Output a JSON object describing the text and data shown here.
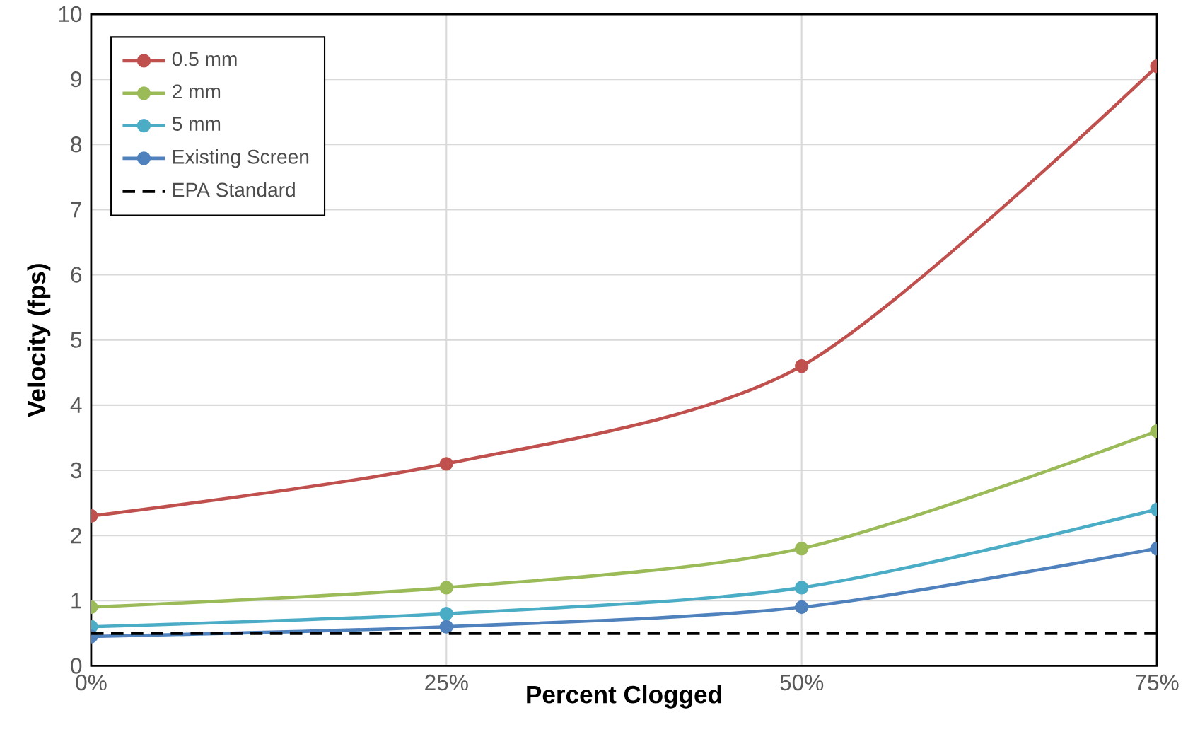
{
  "chart_data": {
    "type": "line",
    "xlabel": "Percent Clogged",
    "ylabel": "Velocity (fps)",
    "x": [
      0,
      25,
      50,
      75
    ],
    "series": [
      {
        "name": "0.5 mm",
        "color": "#c0504d",
        "values": [
          2.3,
          3.1,
          4.6,
          9.2
        ],
        "marker": "circle",
        "line_style": "solid"
      },
      {
        "name": "2 mm",
        "color": "#9bbb59",
        "values": [
          0.9,
          1.2,
          1.8,
          3.6
        ],
        "marker": "circle",
        "line_style": "solid"
      },
      {
        "name": "5 mm",
        "color": "#4bacc6",
        "values": [
          0.6,
          0.8,
          1.2,
          2.4
        ],
        "marker": "circle",
        "line_style": "solid"
      },
      {
        "name": "Existing Screen",
        "color": "#4f81bd",
        "values": [
          0.45,
          0.6,
          0.9,
          1.8
        ],
        "marker": "circle",
        "line_style": "solid"
      },
      {
        "name": "EPA Standard",
        "color": "#000000",
        "values": [
          0.5,
          0.5,
          0.5,
          0.5
        ],
        "marker": "none",
        "line_style": "dashed"
      }
    ],
    "xlim": [
      0,
      75
    ],
    "xticks": [
      {
        "value": 0,
        "label": "0%"
      },
      {
        "value": 25,
        "label": "25%"
      },
      {
        "value": 50,
        "label": "50%"
      },
      {
        "value": 75,
        "label": "75%"
      }
    ],
    "ylim": [
      0,
      10
    ],
    "yticks": [
      0,
      1,
      2,
      3,
      4,
      5,
      6,
      7,
      8,
      9,
      10
    ],
    "grid": true,
    "legend": "top left"
  }
}
